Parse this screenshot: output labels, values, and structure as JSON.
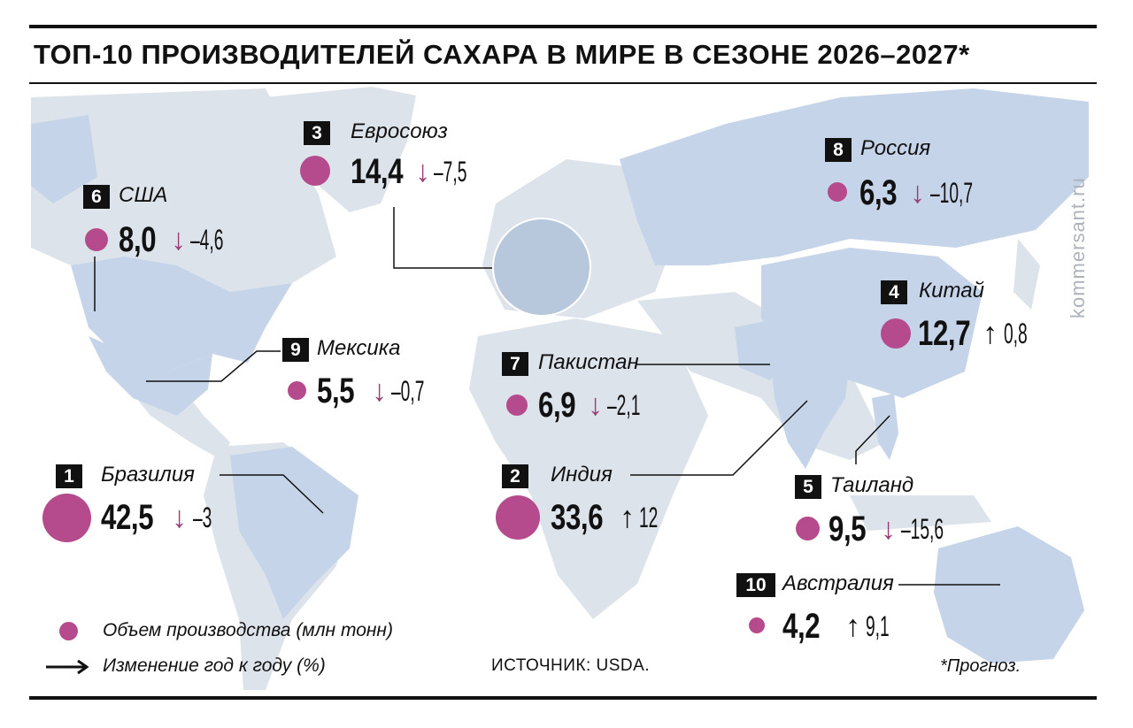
{
  "title": "ТОП-10 ПРОИЗВОДИТЕЛЕЙ САХАРА В МИРЕ В СЕЗОНЕ 2026–2027*",
  "colors": {
    "land": "#dde3ea",
    "highlight_land": "#c5d4e8",
    "marker": "#b54a8c",
    "down_arrow": "#9a3d78",
    "text": "#111111"
  },
  "countries": [
    {
      "rank": "1",
      "name": "Бразилия",
      "value": "42,5",
      "value_num": 42.5,
      "direction": "down",
      "arrow": "↓",
      "change": "–3"
    },
    {
      "rank": "2",
      "name": "Индия",
      "value": "33,6",
      "value_num": 33.6,
      "direction": "up",
      "arrow": "↑",
      "change": "12"
    },
    {
      "rank": "3",
      "name": "Евросоюз",
      "value": "14,4",
      "value_num": 14.4,
      "direction": "down",
      "arrow": "↓",
      "change": "–7,5"
    },
    {
      "rank": "4",
      "name": "Китай",
      "value": "12,7",
      "value_num": 12.7,
      "direction": "up",
      "arrow": "↑",
      "change": "0,8"
    },
    {
      "rank": "5",
      "name": "Таиланд",
      "value": "9,5",
      "value_num": 9.5,
      "direction": "down",
      "arrow": "↓",
      "change": "–15,6"
    },
    {
      "rank": "6",
      "name": "США",
      "value": "8,0",
      "value_num": 8.0,
      "direction": "down",
      "arrow": "↓",
      "change": "–4,6"
    },
    {
      "rank": "7",
      "name": "Пакистан",
      "value": "6,9",
      "value_num": 6.9,
      "direction": "down",
      "arrow": "↓",
      "change": "–2,1"
    },
    {
      "rank": "8",
      "name": "Россия",
      "value": "6,3",
      "value_num": 6.3,
      "direction": "down",
      "arrow": "↓",
      "change": "–10,7"
    },
    {
      "rank": "9",
      "name": "Мексика",
      "value": "5,5",
      "value_num": 5.5,
      "direction": "down",
      "arrow": "↓",
      "change": "–0,7"
    },
    {
      "rank": "10",
      "name": "Австралия",
      "value": "4,2",
      "value_num": 4.2,
      "direction": "up",
      "arrow": "↑",
      "change": "9,1"
    }
  ],
  "legend": {
    "volume": "Объем производства (млн тонн)",
    "change": "Изменение год к году (%)"
  },
  "source": "ИСТОЧНИК: USDA.",
  "footnote": "*Прогноз.",
  "watermark": "kommersant.ru"
}
